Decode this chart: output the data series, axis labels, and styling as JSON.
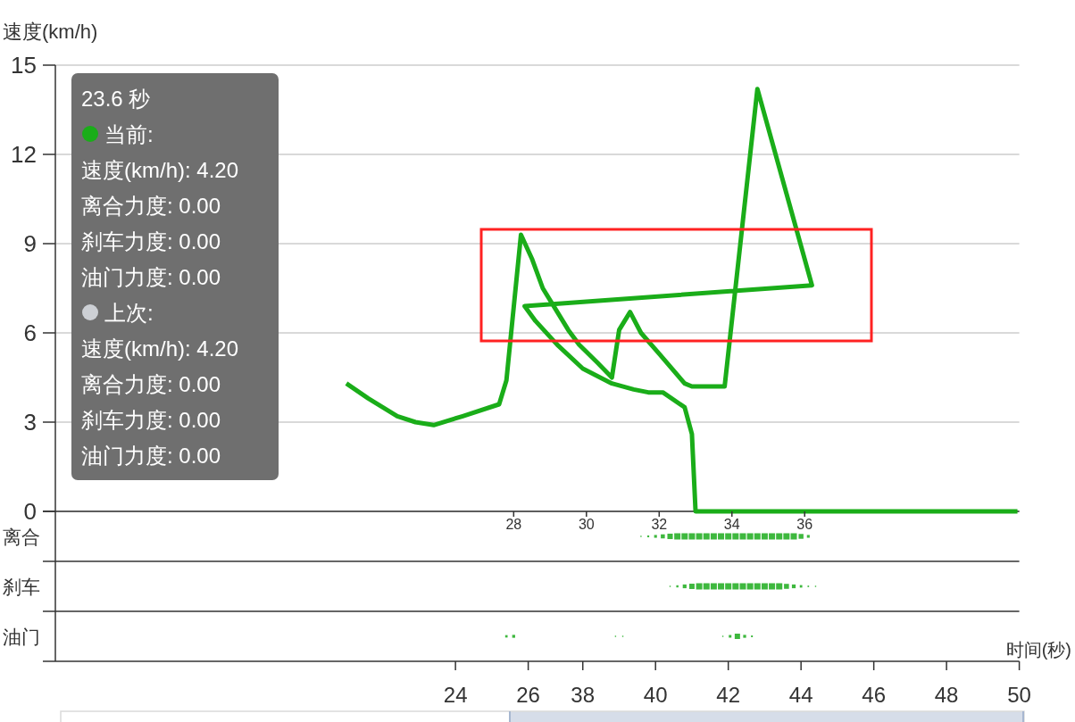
{
  "chart_data": [
    {
      "type": "line",
      "ylabel": "速度(km/h)",
      "color": "#1aad19",
      "x": [
        23.4,
        24.0,
        24.4,
        24.8,
        25.3,
        25.8,
        26.6,
        27.6,
        27.8,
        28.2,
        28.5,
        28.8,
        29.2,
        29.5,
        29.8,
        30.3,
        30.7,
        30.9,
        31.2,
        31.5,
        32.0,
        32.7,
        32.9,
        33.8,
        34.7,
        36.2,
        28.3,
        28.6,
        29.2,
        29.9,
        30.7,
        31.3,
        31.7,
        32.1,
        32.7,
        32.9,
        33.0,
        41.85
      ],
      "values": [
        4.3,
        3.8,
        3.5,
        3.2,
        3.0,
        2.9,
        3.2,
        3.6,
        4.4,
        9.3,
        8.5,
        7.5,
        6.7,
        6.1,
        5.6,
        5.0,
        4.5,
        6.1,
        6.7,
        6.0,
        5.3,
        4.3,
        4.2,
        4.2,
        14.2,
        7.6,
        6.9,
        6.4,
        5.6,
        4.8,
        4.3,
        4.1,
        4.0,
        4.0,
        3.5,
        2.6,
        0,
        0
      ],
      "xlim": [
        15.4,
        41.9
      ],
      "xticks": [
        28,
        30,
        32,
        34,
        36
      ],
      "ylim": [
        0,
        15
      ],
      "yticks": [
        0,
        3,
        6,
        9,
        12,
        15
      ],
      "grid": "y",
      "annotations": [
        "23.6 秒",
        "当前:",
        "速度(km/h): 4.20",
        "离合力度: 0.00",
        "刹车力度: 0.00",
        "油门力度: 0.00",
        "上次:",
        "速度(km/h): 4.20",
        "离合力度: 0.00",
        "刹车力度: 0.00",
        "油门力度: 0.00"
      ]
    },
    {
      "type": "bubble",
      "orientation": "horizontal",
      "marker": "square",
      "grid": "y",
      "categories": [
        "离合",
        "刹车",
        "油门"
      ],
      "series": [
        {
          "color": "#3eb83e",
          "x": [
            "离合",
            "离合",
            "离合",
            "离合",
            "离合",
            "离合",
            "离合",
            "离合",
            "离合",
            "离合",
            "离合",
            "离合",
            "离合",
            "离合",
            "离合",
            "离合",
            "离合",
            "离合",
            "离合",
            "离合",
            "离合",
            "离合",
            "离合",
            "离合"
          ],
          "values": [
            39.6,
            39.8,
            40.0,
            40.2,
            40.4,
            40.6,
            40.8,
            41.0,
            41.2,
            41.4,
            41.6,
            41.8,
            42.0,
            42.2,
            42.4,
            42.6,
            42.8,
            43.0,
            43.2,
            43.4,
            43.6,
            43.8,
            44.0,
            44.2
          ],
          "sizes": [
            0.04,
            0.09,
            0.2,
            0.42,
            0.75,
            1,
            1,
            1,
            1,
            1,
            1,
            1,
            1,
            1,
            1,
            1,
            1,
            1,
            1,
            1,
            1,
            1,
            0.6,
            0.2
          ]
        },
        {
          "color": "#3eb83e",
          "x": [
            "刹车",
            "刹车",
            "刹车",
            "刹车",
            "刹车",
            "刹车",
            "刹车",
            "刹车",
            "刹车",
            "刹车",
            "刹车",
            "刹车",
            "刹车",
            "刹车",
            "刹车",
            "刹车",
            "刹车",
            "刹车",
            "刹车",
            "刹车",
            "刹车"
          ],
          "values": [
            40.4,
            40.6,
            40.8,
            41.0,
            41.2,
            41.4,
            41.6,
            41.8,
            42.0,
            42.2,
            42.4,
            42.6,
            42.8,
            43.0,
            43.2,
            43.4,
            43.6,
            43.8,
            44.0,
            44.2,
            44.4
          ],
          "sizes": [
            0.04,
            0.12,
            0.36,
            0.72,
            1,
            1,
            1,
            1,
            1,
            1,
            1,
            1,
            1,
            1,
            1,
            1,
            0.63,
            0.36,
            0.16,
            0.06,
            0.04
          ]
        },
        {
          "color": "#3eb83e",
          "x": [
            "油门",
            "油门",
            "油门",
            "油门",
            "油门",
            "油门",
            "油门",
            "油门",
            "油门"
          ],
          "values": [
            35.9,
            36.1,
            38.9,
            39.1,
            41.85,
            42.05,
            42.25,
            42.45,
            42.65
          ],
          "sizes": [
            0.15,
            0.22,
            0.04,
            0.04,
            0.04,
            0.18,
            0.73,
            0.22,
            0.08
          ]
        }
      ],
      "xlim": [
        23.5,
        50
      ],
      "xticks": [
        38,
        40,
        42,
        44,
        46,
        48,
        50
      ],
      "x2lim": [
        13.0,
        39.5
      ],
      "x2ticks": [
        24,
        26
      ],
      "xlabel": "时间(秒)"
    }
  ]
}
